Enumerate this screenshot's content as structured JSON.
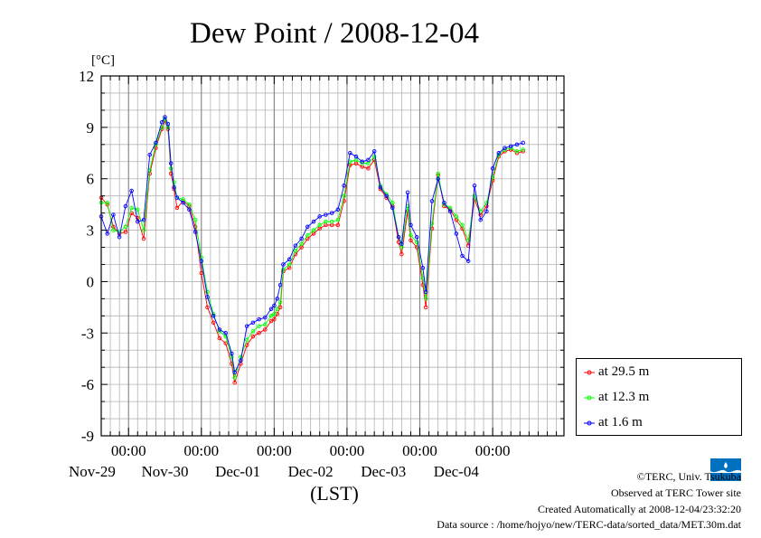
{
  "chart_data": {
    "type": "line",
    "title": "Dew Point / 2008-12-04",
    "ylabel": "[°C]",
    "xlabel": "(LST)",
    "ylim": [
      -9,
      12
    ],
    "yticks": [
      "12",
      "9",
      "6",
      "3",
      "0",
      "-3",
      "-6",
      "-9"
    ],
    "xlim": [
      "2008-11-28 15:00",
      "2008-12-04 23:30"
    ],
    "time_tick_label": "00:00",
    "date_labels": [
      "Nov-29",
      "Nov-30",
      "Dec-01",
      "Dec-02",
      "Dec-03",
      "Dec-04"
    ],
    "grid": true,
    "legend_position": "bottom-right",
    "series": [
      {
        "name": "at 29.5 m",
        "color": "#ff0000",
        "points": [
          [
            "2008-11-28 15:00",
            4.9
          ],
          [
            "2008-11-28 17:00",
            4.5
          ],
          [
            "2008-11-28 19:00",
            3.2
          ],
          [
            "2008-11-28 21:00",
            2.8
          ],
          [
            "2008-11-28 23:00",
            2.9
          ],
          [
            "2008-11-29 01:00",
            4.0
          ],
          [
            "2008-11-29 03:00",
            3.7
          ],
          [
            "2008-11-29 05:00",
            2.5
          ],
          [
            "2008-11-29 07:00",
            6.3
          ],
          [
            "2008-11-29 09:00",
            7.8
          ],
          [
            "2008-11-29 11:00",
            8.9
          ],
          [
            "2008-11-29 12:00",
            9.4
          ],
          [
            "2008-11-29 13:00",
            8.9
          ],
          [
            "2008-11-29 14:00",
            6.3
          ],
          [
            "2008-11-29 15:00",
            5.4
          ],
          [
            "2008-11-29 16:00",
            4.3
          ],
          [
            "2008-11-29 18:00",
            4.7
          ],
          [
            "2008-11-29 20:00",
            4.4
          ],
          [
            "2008-11-29 22:00",
            3.2
          ],
          [
            "2008-11-30 00:00",
            0.5
          ],
          [
            "2008-11-30 02:00",
            -1.5
          ],
          [
            "2008-11-30 04:00",
            -2.4
          ],
          [
            "2008-11-30 06:00",
            -3.3
          ],
          [
            "2008-11-30 08:00",
            -3.6
          ],
          [
            "2008-11-30 10:00",
            -4.8
          ],
          [
            "2008-11-30 11:00",
            -5.9
          ],
          [
            "2008-11-30 13:00",
            -4.8
          ],
          [
            "2008-11-30 15:00",
            -3.7
          ],
          [
            "2008-11-30 17:00",
            -3.2
          ],
          [
            "2008-11-30 19:00",
            -3.0
          ],
          [
            "2008-11-30 21:00",
            -2.8
          ],
          [
            "2008-11-30 23:00",
            -2.3
          ],
          [
            "2008-12-01 00:00",
            -2.2
          ],
          [
            "2008-12-01 01:00",
            -1.9
          ],
          [
            "2008-12-01 02:00",
            -1.5
          ],
          [
            "2008-12-01 03:00",
            0.6
          ],
          [
            "2008-12-01 05:00",
            0.8
          ],
          [
            "2008-12-01 07:00",
            1.6
          ],
          [
            "2008-12-01 09:00",
            2.0
          ],
          [
            "2008-12-01 11:00",
            2.5
          ],
          [
            "2008-12-01 13:00",
            2.8
          ],
          [
            "2008-12-01 15:00",
            3.1
          ],
          [
            "2008-12-01 17:00",
            3.3
          ],
          [
            "2008-12-01 19:00",
            3.3
          ],
          [
            "2008-12-01 21:00",
            3.3
          ],
          [
            "2008-12-01 23:00",
            4.7
          ],
          [
            "2008-12-02 01:00",
            6.8
          ],
          [
            "2008-12-02 03:00",
            6.9
          ],
          [
            "2008-12-02 05:00",
            6.7
          ],
          [
            "2008-12-02 07:00",
            6.6
          ],
          [
            "2008-12-02 09:00",
            7.1
          ],
          [
            "2008-12-02 11:00",
            5.4
          ],
          [
            "2008-12-02 13:00",
            4.9
          ],
          [
            "2008-12-02 15:00",
            4.4
          ],
          [
            "2008-12-02 17:00",
            2.3
          ],
          [
            "2008-12-02 18:00",
            1.6
          ],
          [
            "2008-12-02 20:00",
            4.1
          ],
          [
            "2008-12-02 21:00",
            2.4
          ],
          [
            "2008-12-02 23:00",
            2.0
          ],
          [
            "2008-12-03 01:00",
            -0.2
          ],
          [
            "2008-12-03 02:00",
            -1.5
          ],
          [
            "2008-12-03 04:00",
            3.1
          ],
          [
            "2008-12-03 06:00",
            6.2
          ],
          [
            "2008-12-03 08:00",
            4.4
          ],
          [
            "2008-12-03 10:00",
            4.2
          ],
          [
            "2008-12-03 12:00",
            3.6
          ],
          [
            "2008-12-03 14:00",
            3.1
          ],
          [
            "2008-12-03 16:00",
            2.1
          ],
          [
            "2008-12-03 18:00",
            4.8
          ],
          [
            "2008-12-03 20:00",
            3.9
          ],
          [
            "2008-12-03 22:00",
            4.4
          ],
          [
            "2008-12-04 00:00",
            5.9
          ],
          [
            "2008-12-04 02:00",
            7.3
          ],
          [
            "2008-12-04 04:00",
            7.6
          ],
          [
            "2008-12-04 06:00",
            7.7
          ],
          [
            "2008-12-04 08:00",
            7.5
          ],
          [
            "2008-12-04 10:00",
            7.6
          ]
        ]
      },
      {
        "name": "at 12.3 m",
        "color": "#00ff00",
        "points": [
          [
            "2008-11-28 15:00",
            4.6
          ],
          [
            "2008-11-28 17:00",
            4.6
          ],
          [
            "2008-11-28 19:00",
            3.0
          ],
          [
            "2008-11-28 21:00",
            2.9
          ],
          [
            "2008-11-28 23:00",
            3.2
          ],
          [
            "2008-11-29 01:00",
            4.3
          ],
          [
            "2008-11-29 03:00",
            4.2
          ],
          [
            "2008-11-29 05:00",
            3.0
          ],
          [
            "2008-11-29 07:00",
            6.5
          ],
          [
            "2008-11-29 09:00",
            8.0
          ],
          [
            "2008-11-29 11:00",
            9.0
          ],
          [
            "2008-11-29 12:00",
            9.5
          ],
          [
            "2008-11-29 13:00",
            9.0
          ],
          [
            "2008-11-29 14:00",
            6.6
          ],
          [
            "2008-11-29 15:00",
            5.8
          ],
          [
            "2008-11-29 16:00",
            4.9
          ],
          [
            "2008-11-29 18:00",
            4.8
          ],
          [
            "2008-11-29 20:00",
            4.5
          ],
          [
            "2008-11-29 22:00",
            3.6
          ],
          [
            "2008-11-30 00:00",
            1.4
          ],
          [
            "2008-11-30 02:00",
            -0.6
          ],
          [
            "2008-11-30 04:00",
            -1.9
          ],
          [
            "2008-11-30 06:00",
            -2.9
          ],
          [
            "2008-11-30 08:00",
            -3.2
          ],
          [
            "2008-11-30 10:00",
            -4.4
          ],
          [
            "2008-11-30 11:00",
            -5.6
          ],
          [
            "2008-11-30 13:00",
            -4.4
          ],
          [
            "2008-11-30 15:00",
            -3.4
          ],
          [
            "2008-11-30 17:00",
            -2.9
          ],
          [
            "2008-11-30 19:00",
            -2.6
          ],
          [
            "2008-11-30 21:00",
            -2.5
          ],
          [
            "2008-11-30 23:00",
            -2.0
          ],
          [
            "2008-12-01 00:00",
            -1.9
          ],
          [
            "2008-12-01 01:00",
            -1.6
          ],
          [
            "2008-12-01 02:00",
            -1.2
          ],
          [
            "2008-12-01 03:00",
            0.7
          ],
          [
            "2008-12-01 05:00",
            1.0
          ],
          [
            "2008-12-01 07:00",
            1.8
          ],
          [
            "2008-12-01 09:00",
            2.2
          ],
          [
            "2008-12-01 11:00",
            2.7
          ],
          [
            "2008-12-01 13:00",
            3.0
          ],
          [
            "2008-12-01 15:00",
            3.3
          ],
          [
            "2008-12-01 17:00",
            3.5
          ],
          [
            "2008-12-01 19:00",
            3.5
          ],
          [
            "2008-12-01 21:00",
            3.6
          ],
          [
            "2008-12-01 23:00",
            5.0
          ],
          [
            "2008-12-02 01:00",
            7.0
          ],
          [
            "2008-12-02 03:00",
            7.1
          ],
          [
            "2008-12-02 05:00",
            6.9
          ],
          [
            "2008-12-02 07:00",
            6.9
          ],
          [
            "2008-12-02 09:00",
            7.3
          ],
          [
            "2008-12-02 11:00",
            5.6
          ],
          [
            "2008-12-02 13:00",
            5.1
          ],
          [
            "2008-12-02 15:00",
            4.6
          ],
          [
            "2008-12-02 17:00",
            2.6
          ],
          [
            "2008-12-02 18:00",
            2.0
          ],
          [
            "2008-12-02 20:00",
            4.4
          ],
          [
            "2008-12-02 21:00",
            2.7
          ],
          [
            "2008-12-02 23:00",
            2.3
          ],
          [
            "2008-12-03 01:00",
            0.2
          ],
          [
            "2008-12-03 02:00",
            -1.0
          ],
          [
            "2008-12-03 04:00",
            3.4
          ],
          [
            "2008-12-03 06:00",
            6.3
          ],
          [
            "2008-12-03 08:00",
            4.5
          ],
          [
            "2008-12-03 10:00",
            4.3
          ],
          [
            "2008-12-03 12:00",
            3.8
          ],
          [
            "2008-12-03 14:00",
            3.3
          ],
          [
            "2008-12-03 16:00",
            2.4
          ],
          [
            "2008-12-03 18:00",
            5.0
          ],
          [
            "2008-12-03 20:00",
            4.1
          ],
          [
            "2008-12-03 22:00",
            4.6
          ],
          [
            "2008-12-04 00:00",
            6.1
          ],
          [
            "2008-12-04 02:00",
            7.4
          ],
          [
            "2008-12-04 04:00",
            7.7
          ],
          [
            "2008-12-04 06:00",
            7.8
          ],
          [
            "2008-12-04 08:00",
            7.6
          ],
          [
            "2008-12-04 10:00",
            7.7
          ]
        ]
      },
      {
        "name": "at 1.6 m",
        "color": "#0000ff",
        "points": [
          [
            "2008-11-28 15:00",
            3.8
          ],
          [
            "2008-11-28 17:00",
            2.8
          ],
          [
            "2008-11-28 19:00",
            3.9
          ],
          [
            "2008-11-28 21:00",
            2.6
          ],
          [
            "2008-11-28 23:00",
            4.4
          ],
          [
            "2008-11-29 01:00",
            5.3
          ],
          [
            "2008-11-29 03:00",
            3.5
          ],
          [
            "2008-11-29 05:00",
            3.6
          ],
          [
            "2008-11-29 07:00",
            7.4
          ],
          [
            "2008-11-29 09:00",
            8.1
          ],
          [
            "2008-11-29 11:00",
            9.3
          ],
          [
            "2008-11-29 12:00",
            9.6
          ],
          [
            "2008-11-29 13:00",
            9.2
          ],
          [
            "2008-11-29 14:00",
            6.9
          ],
          [
            "2008-11-29 15:00",
            5.5
          ],
          [
            "2008-11-29 16:00",
            4.9
          ],
          [
            "2008-11-29 18:00",
            4.6
          ],
          [
            "2008-11-29 20:00",
            4.2
          ],
          [
            "2008-11-29 22:00",
            2.9
          ],
          [
            "2008-11-30 00:00",
            1.2
          ],
          [
            "2008-11-30 02:00",
            -0.9
          ],
          [
            "2008-11-30 04:00",
            -2.0
          ],
          [
            "2008-11-30 06:00",
            -2.8
          ],
          [
            "2008-11-30 08:00",
            -3.0
          ],
          [
            "2008-11-30 10:00",
            -4.2
          ],
          [
            "2008-11-30 11:00",
            -5.3
          ],
          [
            "2008-11-30 13:00",
            -4.6
          ],
          [
            "2008-11-30 15:00",
            -2.6
          ],
          [
            "2008-11-30 17:00",
            -2.4
          ],
          [
            "2008-11-30 19:00",
            -2.2
          ],
          [
            "2008-11-30 21:00",
            -2.1
          ],
          [
            "2008-11-30 23:00",
            -1.6
          ],
          [
            "2008-12-01 00:00",
            -1.4
          ],
          [
            "2008-12-01 01:00",
            -1.0
          ],
          [
            "2008-12-01 02:00",
            -0.2
          ],
          [
            "2008-12-01 03:00",
            1.0
          ],
          [
            "2008-12-01 05:00",
            1.3
          ],
          [
            "2008-12-01 07:00",
            2.1
          ],
          [
            "2008-12-01 09:00",
            2.5
          ],
          [
            "2008-12-01 11:00",
            3.2
          ],
          [
            "2008-12-01 13:00",
            3.5
          ],
          [
            "2008-12-01 15:00",
            3.8
          ],
          [
            "2008-12-01 17:00",
            3.9
          ],
          [
            "2008-12-01 19:00",
            4.0
          ],
          [
            "2008-12-01 21:00",
            4.2
          ],
          [
            "2008-12-01 23:00",
            5.6
          ],
          [
            "2008-12-02 01:00",
            7.5
          ],
          [
            "2008-12-02 03:00",
            7.3
          ],
          [
            "2008-12-02 05:00",
            7.0
          ],
          [
            "2008-12-02 07:00",
            7.1
          ],
          [
            "2008-12-02 09:00",
            7.6
          ],
          [
            "2008-12-02 11:00",
            5.5
          ],
          [
            "2008-12-02 13:00",
            5.0
          ],
          [
            "2008-12-02 15:00",
            4.3
          ],
          [
            "2008-12-02 17:00",
            2.6
          ],
          [
            "2008-12-02 18:00",
            2.2
          ],
          [
            "2008-12-02 20:00",
            5.2
          ],
          [
            "2008-12-02 21:00",
            3.3
          ],
          [
            "2008-12-02 23:00",
            2.6
          ],
          [
            "2008-12-03 01:00",
            0.8
          ],
          [
            "2008-12-03 02:00",
            -0.6
          ],
          [
            "2008-12-03 04:00",
            4.7
          ],
          [
            "2008-12-03 06:00",
            6.0
          ],
          [
            "2008-12-03 08:00",
            4.6
          ],
          [
            "2008-12-03 10:00",
            4.1
          ],
          [
            "2008-12-03 12:00",
            2.8
          ],
          [
            "2008-12-03 14:00",
            1.5
          ],
          [
            "2008-12-03 16:00",
            1.2
          ],
          [
            "2008-12-03 18:00",
            5.6
          ],
          [
            "2008-12-03 20:00",
            3.6
          ],
          [
            "2008-12-03 22:00",
            4.1
          ],
          [
            "2008-12-04 00:00",
            6.6
          ],
          [
            "2008-12-04 02:00",
            7.5
          ],
          [
            "2008-12-04 04:00",
            7.8
          ],
          [
            "2008-12-04 06:00",
            7.9
          ],
          [
            "2008-12-04 08:00",
            8.0
          ],
          [
            "2008-12-04 10:00",
            8.1
          ]
        ]
      }
    ]
  },
  "footer": {
    "copyright": "©TERC, Univ. Tsukuba",
    "observed": "Observed at TERC Tower site",
    "created": "Created Automatically at 2008-12-04/23:32:20",
    "source": "Data source : /home/hojyo/new/TERC-data/sorted_data/MET.30m.dat"
  },
  "logo": {
    "text": "TERC",
    "color": "#0070c0"
  }
}
